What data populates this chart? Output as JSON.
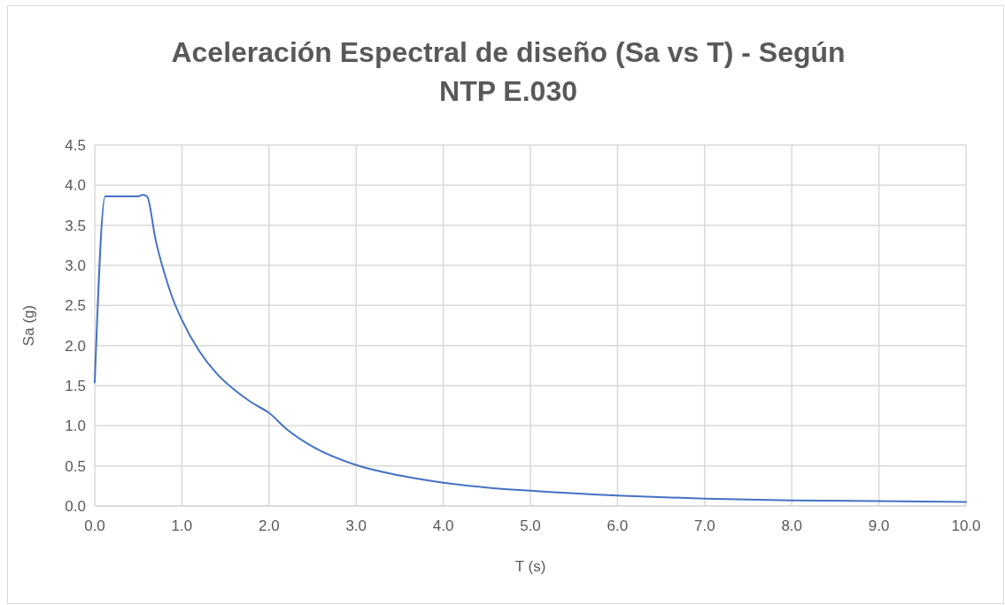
{
  "chart_data": {
    "type": "line",
    "title": "Aceleración Espectral de diseño (Sa vs T) - Según NTP E.030",
    "xlabel": "T (s)",
    "ylabel": "Sa (g)",
    "series": [
      {
        "color": "#4472c4",
        "x": [
          0,
          0.12,
          0.5,
          0.55,
          0.6,
          0.7,
          0.8,
          0.9,
          1.0,
          1.2,
          1.4,
          1.6,
          1.8,
          2.0,
          2.2,
          2.5,
          3.0,
          3.5,
          4.0,
          4.5,
          5.0,
          6.0,
          7.0,
          8.0,
          9.0,
          10.0
        ],
        "values": [
          1.54,
          3.86,
          3.86,
          3.88,
          3.86,
          3.31,
          2.9,
          2.57,
          2.32,
          1.93,
          1.65,
          1.45,
          1.29,
          1.16,
          0.96,
          0.74,
          0.51,
          0.38,
          0.29,
          0.23,
          0.19,
          0.13,
          0.09,
          0.07,
          0.06,
          0.05
        ]
      }
    ],
    "xlim": [
      0,
      10
    ],
    "xticks": [
      {
        "value": 0,
        "label": "0.0"
      },
      {
        "value": 1,
        "label": "1.0"
      },
      {
        "value": 2,
        "label": "2.0"
      },
      {
        "value": 3,
        "label": "3.0"
      },
      {
        "value": 4,
        "label": "4.0"
      },
      {
        "value": 5,
        "label": "5.0"
      },
      {
        "value": 6,
        "label": "6.0"
      },
      {
        "value": 7,
        "label": "7.0"
      },
      {
        "value": 8,
        "label": "8.0"
      },
      {
        "value": 9,
        "label": "9.0"
      },
      {
        "value": 10,
        "label": "10.0"
      }
    ],
    "ylim": [
      0,
      4.5
    ],
    "yticks": [
      {
        "value": 0,
        "label": "0.0"
      },
      {
        "value": 0.5,
        "label": "0.5"
      },
      {
        "value": 1,
        "label": "1.0"
      },
      {
        "value": 1.5,
        "label": "1.5"
      },
      {
        "value": 2,
        "label": "2.0"
      },
      {
        "value": 2.5,
        "label": "2.5"
      },
      {
        "value": 3,
        "label": "3.0"
      },
      {
        "value": 3.5,
        "label": "3.5"
      },
      {
        "value": 4,
        "label": "4.0"
      },
      {
        "value": 4.5,
        "label": "4.5"
      }
    ],
    "grid": true,
    "marker": "none",
    "line_style": "solid"
  }
}
